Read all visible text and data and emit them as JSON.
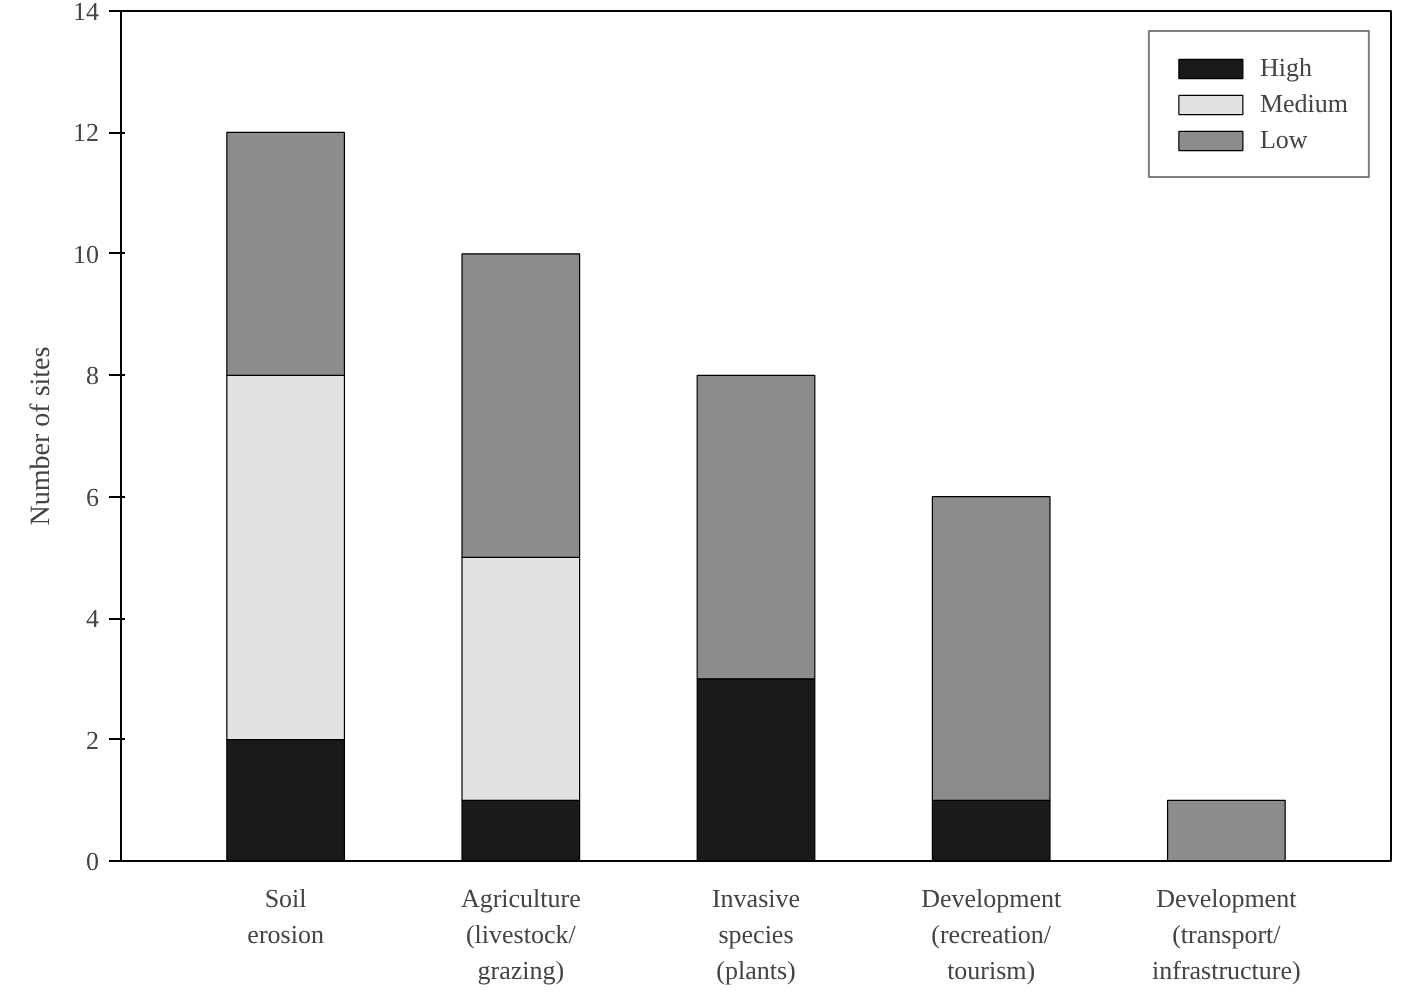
{
  "chart_data": {
    "type": "bar",
    "stacked": true,
    "ylabel": "Number of sites",
    "categories": [
      "Soil\nerosion",
      "Agriculture\n(livestock/\ngrazing)",
      "Invasive\nspecies\n(plants)",
      "Development\n(recreation/\ntourism)",
      "Development\n(transport/\ninfrastructure)"
    ],
    "series": [
      {
        "name": "High",
        "color": "#1a1a1a",
        "values": [
          2,
          1,
          3,
          1,
          0
        ]
      },
      {
        "name": "Medium",
        "color": "#e2e2e2",
        "values": [
          6,
          4,
          0,
          0,
          0
        ]
      },
      {
        "name": "Low",
        "color": "#8c8c8c",
        "values": [
          4,
          5,
          5,
          5,
          1
        ]
      }
    ],
    "ylim": [
      0,
      14
    ],
    "yticks": [
      0,
      2,
      4,
      6,
      8,
      10,
      12,
      14
    ],
    "grid": false,
    "legend": "top right"
  }
}
